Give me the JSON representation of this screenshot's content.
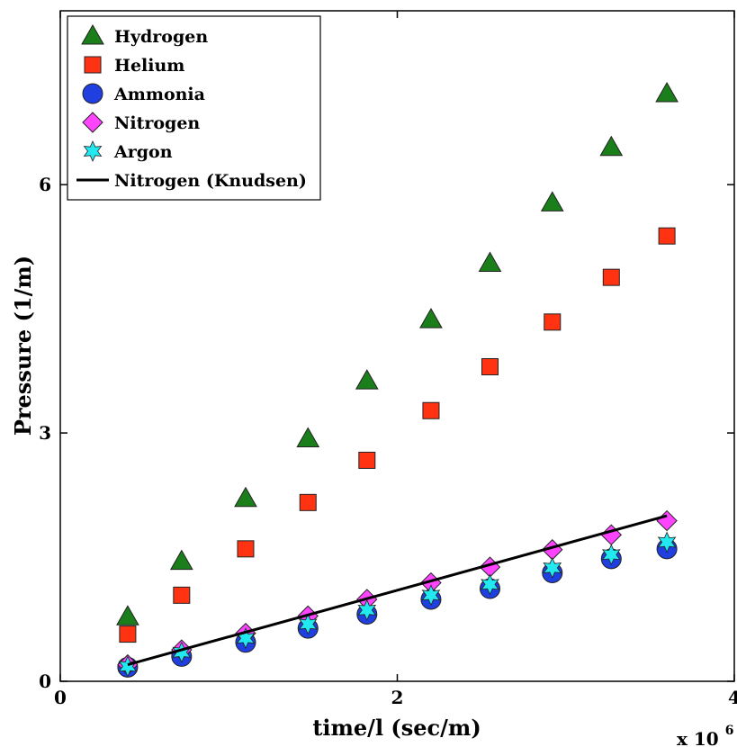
{
  "chart_data": {
    "type": "scatter",
    "xlabel": "time/l (sec/m)",
    "ylabel": "Pressure (1/m)",
    "x_multiplier_label": "x 10",
    "x_multiplier_exponent": "6",
    "xlim": [
      0,
      4000000
    ],
    "ylim": [
      0,
      8.1
    ],
    "x_ticks": [
      0,
      2000000,
      4000000
    ],
    "x_tick_labels": [
      "0",
      "2",
      "4"
    ],
    "y_ticks": [
      0,
      3,
      6
    ],
    "y_tick_labels": [
      "0",
      "3",
      "6"
    ],
    "grid": false,
    "legend_position": "top-left",
    "x": [
      400000,
      720000,
      1100000,
      1470000,
      1820000,
      2200000,
      2550000,
      2920000,
      3270000,
      3600000
    ],
    "series": [
      {
        "name": "Hydrogen",
        "marker": "triangle",
        "color": "#1a7f1a",
        "values": [
          0.78,
          1.45,
          2.21,
          2.93,
          3.63,
          4.37,
          5.05,
          5.78,
          6.45,
          7.1
        ]
      },
      {
        "name": "Helium",
        "marker": "square",
        "color": "#ff3311",
        "values": [
          0.57,
          1.04,
          1.6,
          2.16,
          2.67,
          3.27,
          3.8,
          4.34,
          4.88,
          5.38
        ]
      },
      {
        "name": "Ammonia",
        "marker": "circle",
        "color": "#1f3fe0",
        "values": [
          0.17,
          0.3,
          0.47,
          0.64,
          0.81,
          0.99,
          1.12,
          1.31,
          1.48,
          1.6
        ]
      },
      {
        "name": "Nitrogen",
        "marker": "diamond",
        "color": "#ff44ff",
        "values": [
          0.2,
          0.38,
          0.58,
          0.79,
          0.99,
          1.19,
          1.38,
          1.59,
          1.77,
          1.94
        ]
      },
      {
        "name": "Argon",
        "marker": "star",
        "color": "#22e8f0",
        "values": [
          0.18,
          0.35,
          0.52,
          0.69,
          0.86,
          1.04,
          1.17,
          1.37,
          1.53,
          1.68
        ]
      },
      {
        "name": "Nitrogen (Knudsen)",
        "marker": "line",
        "color": "#000000",
        "line_x": [
          400000,
          3600000
        ],
        "line_values": [
          0.2,
          2.0
        ]
      }
    ]
  }
}
